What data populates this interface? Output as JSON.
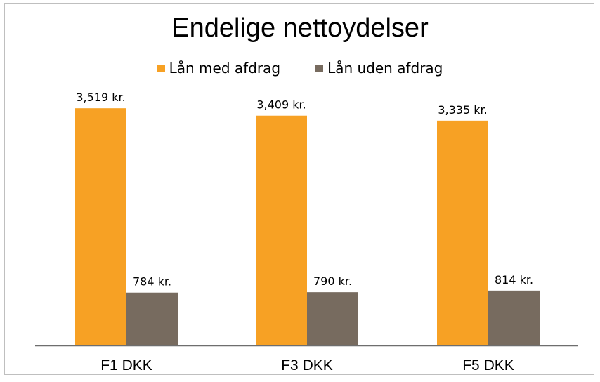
{
  "chart_data": {
    "type": "bar",
    "title": "Endelige nettoydelser",
    "categories": [
      "F1 DKK",
      "F3 DKK",
      "F5 DKK"
    ],
    "series": [
      {
        "name": "Lån med afdrag",
        "color": "#f7a124",
        "values": [
          3519,
          3409,
          3335
        ],
        "labels": [
          "3,519 kr.",
          "3,409 kr.",
          "3,335 kr."
        ]
      },
      {
        "name": "Lån uden afdrag",
        "color": "#776b5f",
        "values": [
          784,
          790,
          814
        ],
        "labels": [
          "784 kr.",
          "790 kr.",
          "814 kr."
        ]
      }
    ],
    "ylim": [
      0,
      4000
    ],
    "grid": false,
    "legend_position": "top"
  }
}
